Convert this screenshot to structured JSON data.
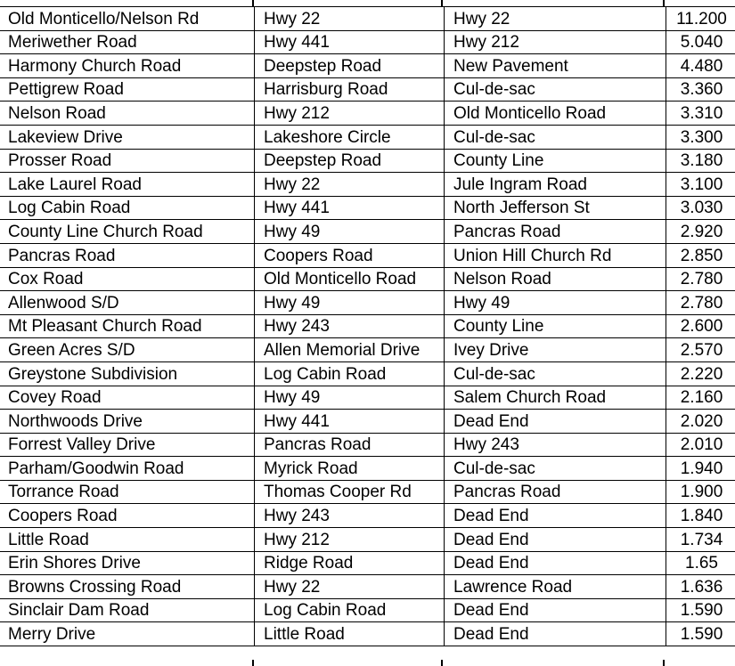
{
  "table": {
    "rows": [
      [
        "Old Monticello/Nelson Rd",
        "Hwy 22",
        "Hwy 22",
        "11.200"
      ],
      [
        "Meriwether Road",
        "Hwy 441",
        "Hwy 212",
        "5.040"
      ],
      [
        "Harmony Church Road",
        "Deepstep Road",
        "New Pavement",
        "4.480"
      ],
      [
        "Pettigrew Road",
        "Harrisburg Road",
        "Cul-de-sac",
        "3.360"
      ],
      [
        "Nelson Road",
        "Hwy 212",
        "Old Monticello Road",
        "3.310"
      ],
      [
        "Lakeview Drive",
        "Lakeshore Circle",
        "Cul-de-sac",
        "3.300"
      ],
      [
        "Prosser Road",
        "Deepstep Road",
        "County Line",
        "3.180"
      ],
      [
        "Lake Laurel Road",
        "Hwy 22",
        "Jule Ingram Road",
        "3.100"
      ],
      [
        "Log Cabin Road",
        "Hwy 441",
        "North Jefferson St",
        "3.030"
      ],
      [
        "County Line Church Road",
        "Hwy 49",
        "Pancras Road",
        "2.920"
      ],
      [
        "Pancras Road",
        "Coopers Road",
        "Union Hill Church Rd",
        "2.850"
      ],
      [
        "Cox Road",
        "Old Monticello Road",
        "Nelson Road",
        "2.780"
      ],
      [
        "Allenwood S/D",
        "Hwy 49",
        "Hwy 49",
        "2.780"
      ],
      [
        "Mt Pleasant Church Road",
        "Hwy 243",
        "County Line",
        "2.600"
      ],
      [
        "Green Acres S/D",
        "Allen Memorial Drive",
        "Ivey Drive",
        "2.570"
      ],
      [
        "Greystone Subdivision",
        "Log Cabin Road",
        "Cul-de-sac",
        "2.220"
      ],
      [
        "Covey Road",
        "Hwy 49",
        "Salem Church Road",
        "2.160"
      ],
      [
        "Northwoods Drive",
        "Hwy 441",
        "Dead End",
        "2.020"
      ],
      [
        "Forrest Valley Drive",
        "Pancras Road",
        "Hwy 243",
        "2.010"
      ],
      [
        "Parham/Goodwin Road",
        "Myrick Road",
        "Cul-de-sac",
        "1.940"
      ],
      [
        "Torrance Road",
        "Thomas Cooper Rd",
        "Pancras Road",
        "1.900"
      ],
      [
        "Coopers Road",
        "Hwy 243",
        "Dead End",
        "1.840"
      ],
      [
        "Little Road",
        "Hwy 212",
        "Dead End",
        "1.734"
      ],
      [
        "Erin Shores Drive",
        "Ridge Road",
        "Dead End",
        "1.65"
      ],
      [
        "Browns Crossing Road",
        "Hwy 22",
        "Lawrence Road",
        "1.636"
      ],
      [
        "Sinclair Dam Road",
        "Log Cabin Road",
        "Dead End",
        "1.590"
      ],
      [
        "Merry Drive",
        "Little Road",
        "Dead End",
        "1.590"
      ]
    ]
  }
}
